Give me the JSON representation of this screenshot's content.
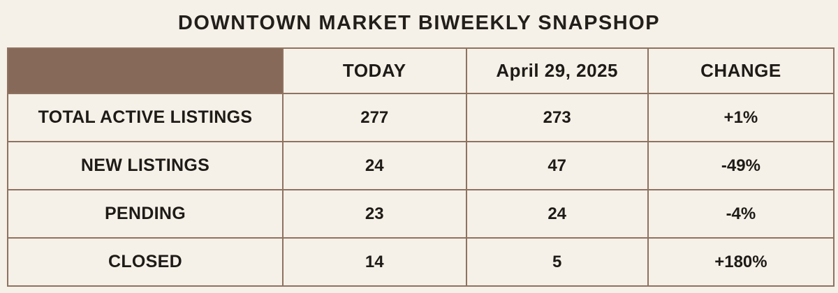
{
  "title": "DOWNTOWN MARKET BIWEEKLY SNAPSHOP",
  "chart_data": {
    "type": "table",
    "title": "DOWNTOWN MARKET BIWEEKLY SNAPSHOP",
    "columns": [
      "",
      "TODAY",
      "April 29, 2025",
      "CHANGE"
    ],
    "rows": [
      [
        "TOTAL ACTIVE LISTINGS",
        "277",
        "273",
        "+1%"
      ],
      [
        "NEW LISTINGS",
        "24",
        "47",
        "-49%"
      ],
      [
        "PENDING",
        "23",
        "24",
        "-4%"
      ],
      [
        "CLOSED",
        "14",
        "5",
        "+180%"
      ]
    ]
  },
  "colors": {
    "background": "#F6F1E8",
    "corner_cell_bg": "#87695A",
    "border": "#8E7260",
    "text": "#1E1B17"
  }
}
